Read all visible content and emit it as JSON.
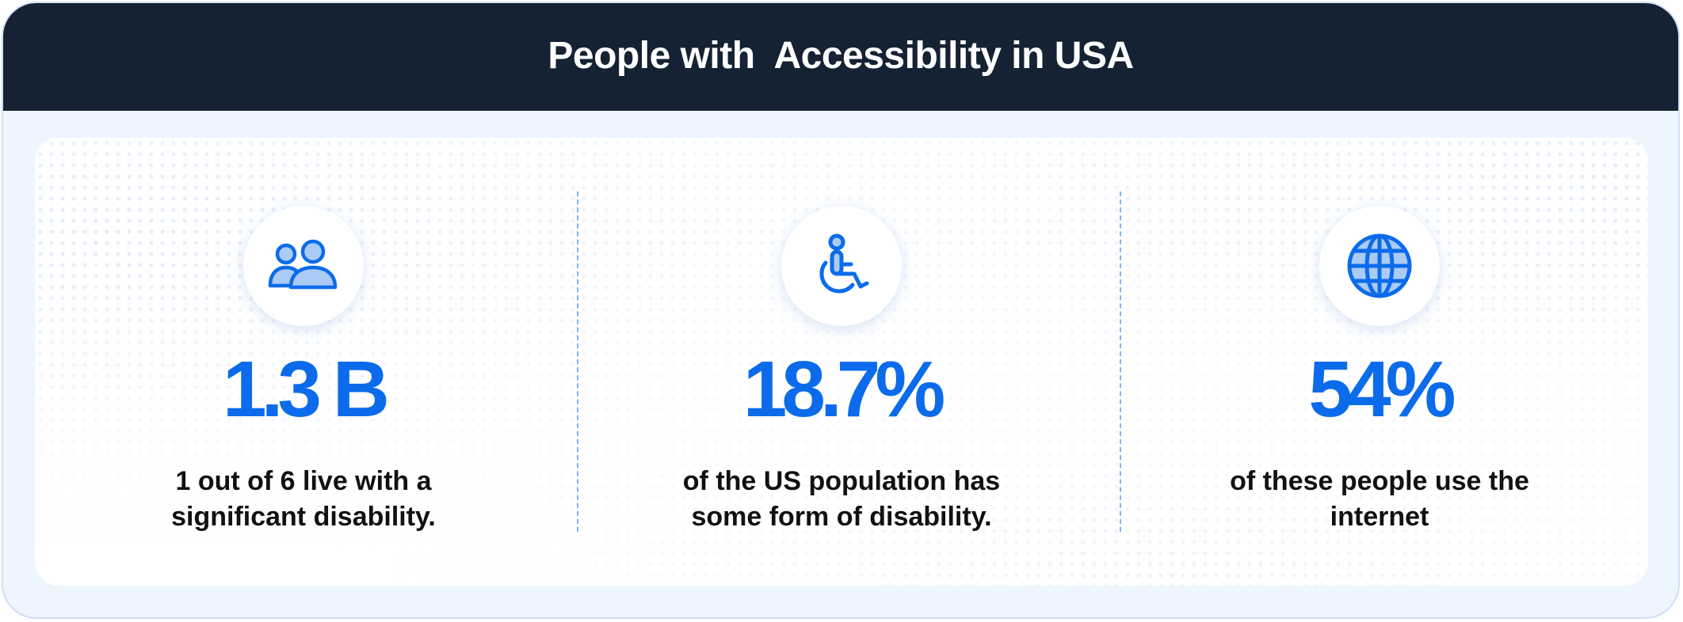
{
  "header": {
    "title": "People with  Accessibility in USA"
  },
  "colors": {
    "header_bg": "#152233",
    "accent": "#0c6bea",
    "icon_fill": "#a9cbf6",
    "frame_bg": "#edf5ff"
  },
  "stats": [
    {
      "icon": "people-icon",
      "value": "1.3 B",
      "desc_line1": "1 out of 6 live with a",
      "desc_line2": "significant disability."
    },
    {
      "icon": "wheelchair-icon",
      "value": "18.7%",
      "desc_line1": "of the US population has",
      "desc_line2": "some form of disability."
    },
    {
      "icon": "globe-icon",
      "value": "54%",
      "desc_line1": "of these people use the",
      "desc_line2": "internet"
    }
  ]
}
